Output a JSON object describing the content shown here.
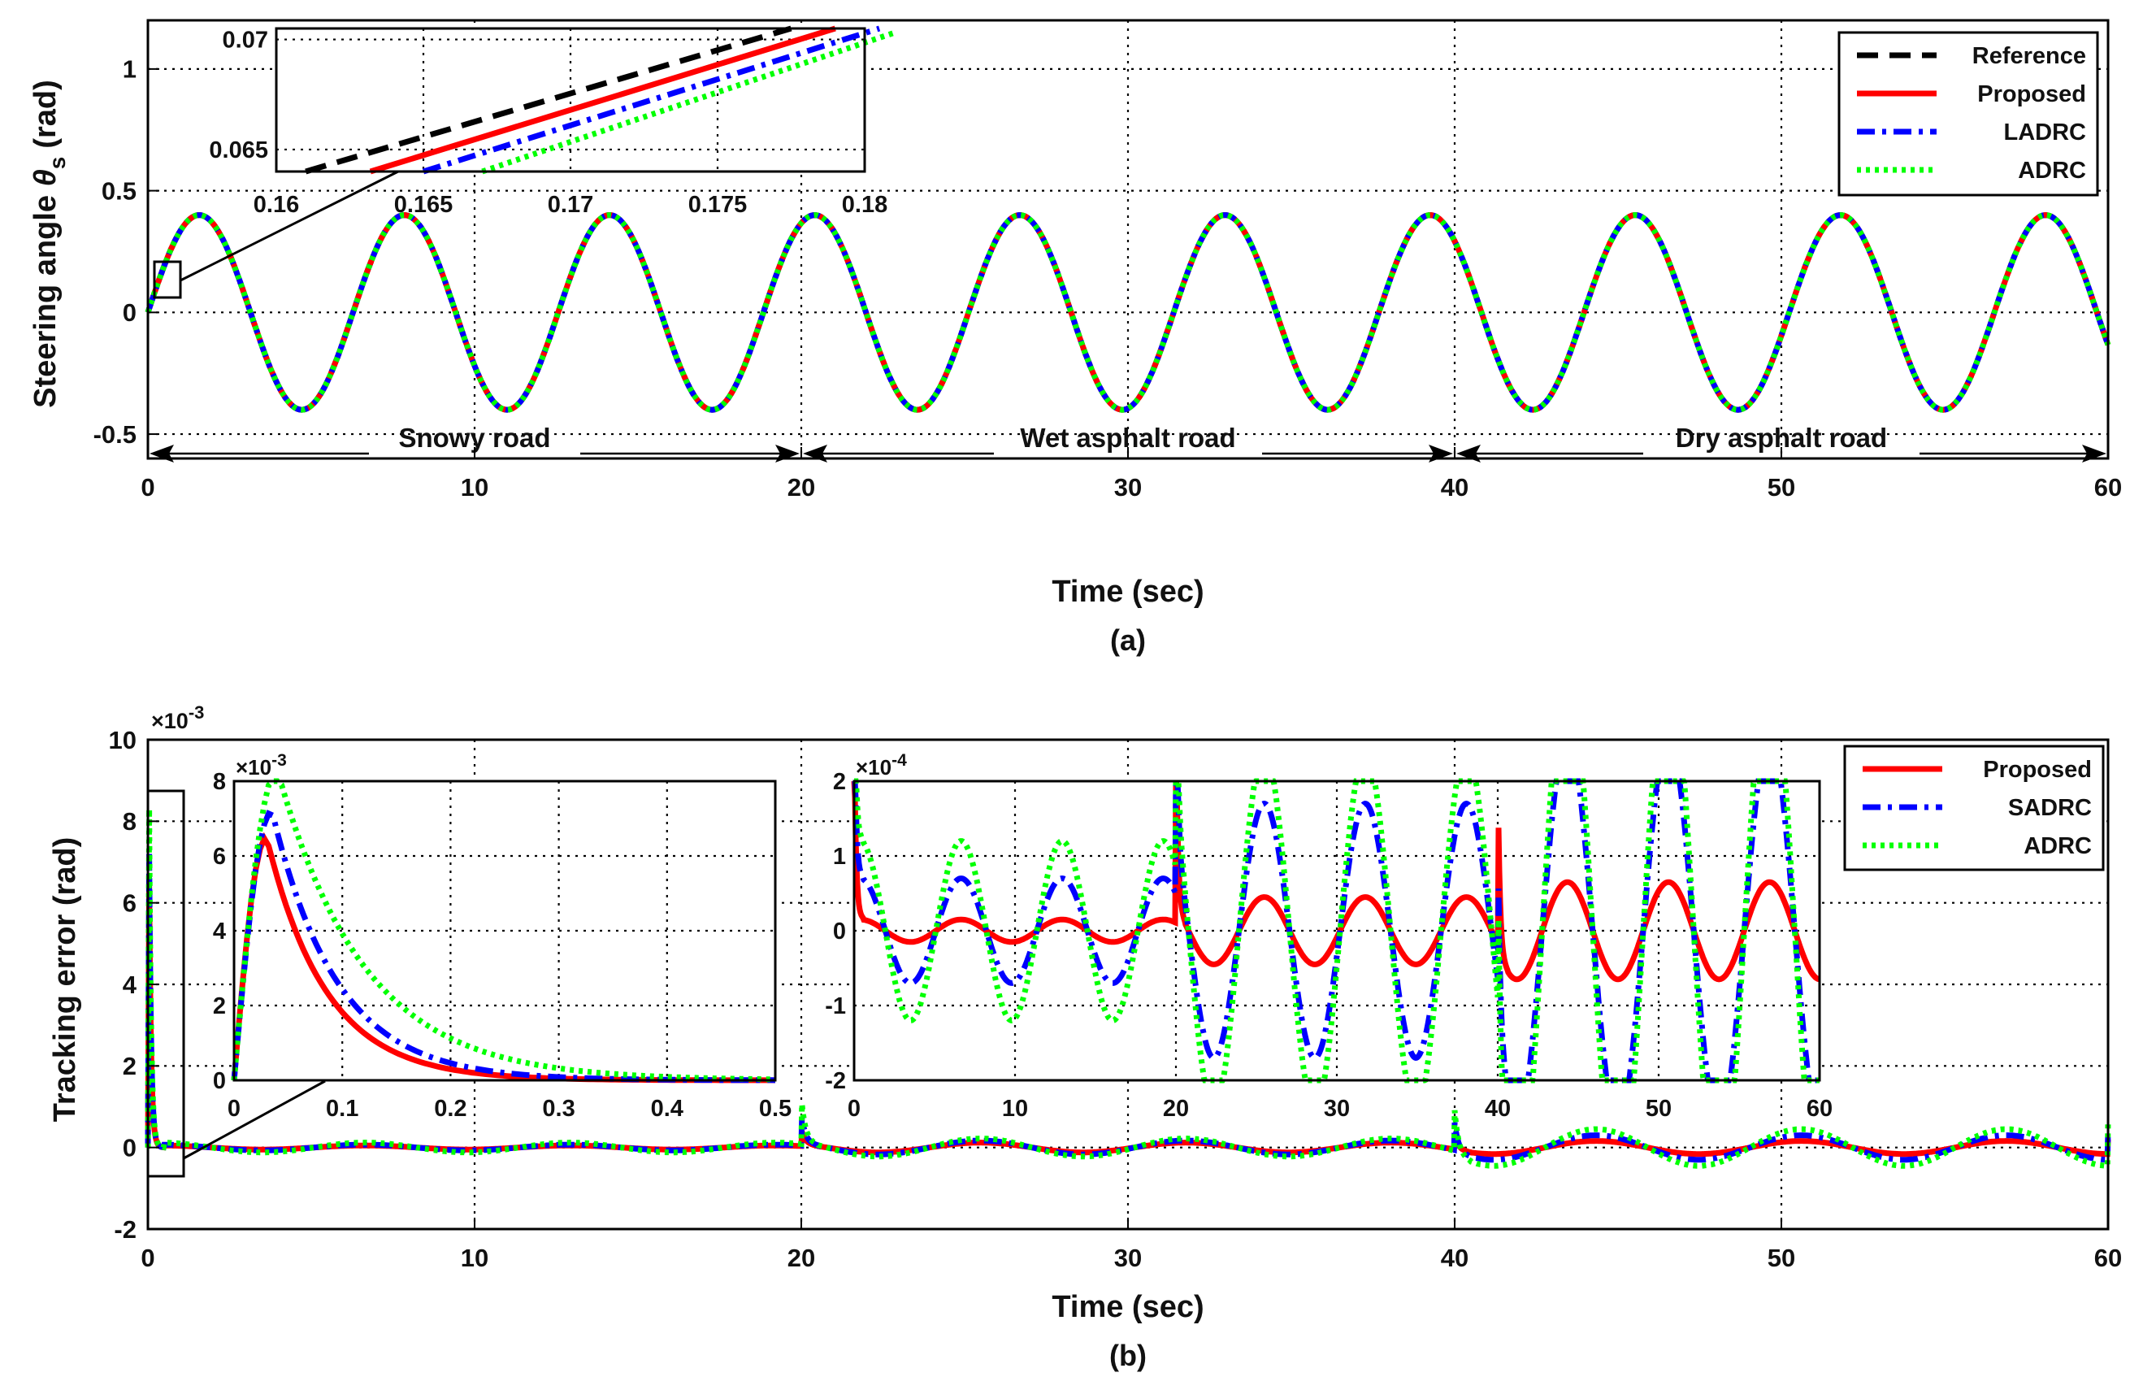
{
  "chart_data": [
    {
      "id": "a",
      "type": "line",
      "caption": "(a)",
      "xlabel": "Time (sec)",
      "ylabel_main": "Steering angle",
      "ylabel_symbol": "θ",
      "ylabel_sub": "s",
      "ylabel_unit": "(rad)",
      "xlim": [
        0,
        60
      ],
      "ylim": [
        -0.6,
        1.2
      ],
      "xticks": [
        "0",
        "10",
        "20",
        "30",
        "40",
        "50",
        "60"
      ],
      "yticks": [
        "-0.5",
        "0",
        "0.5",
        "1"
      ],
      "grid": true,
      "signal": {
        "amplitude": 0.4,
        "period": 6.28
      },
      "series": [
        {
          "name": "Reference",
          "color": "#000000",
          "dash": "dash"
        },
        {
          "name": "Proposed",
          "color": "#ff0000",
          "dash": "solid"
        },
        {
          "name": "LADRC",
          "color": "#0000ff",
          "dash": "dashdot"
        },
        {
          "name": "ADRC",
          "color": "#00ff00",
          "dash": "dot"
        }
      ],
      "legend": "top-right",
      "annotations": [
        {
          "label": "Snowy road",
          "from": 0,
          "to": 20
        },
        {
          "label": "Wet asphalt road",
          "from": 20,
          "to": 40
        },
        {
          "label": "Dry asphalt road",
          "from": 40,
          "to": 60
        }
      ],
      "inset": {
        "xlim": [
          0.16,
          0.18
        ],
        "ylim": [
          0.064,
          0.0705
        ],
        "xticks": [
          "0.16",
          "0.165",
          "0.17",
          "0.175",
          "0.18"
        ],
        "yticks": [
          "0.065",
          "0.07"
        ],
        "lines": [
          {
            "name": "Reference",
            "points": [
              [
                0.161,
                0.064
              ],
              [
                0.1775,
                0.0705
              ]
            ]
          },
          {
            "name": "Proposed",
            "points": [
              [
                0.1632,
                0.064
              ],
              [
                0.179,
                0.0705
              ]
            ]
          },
          {
            "name": "LADRC",
            "points": [
              [
                0.165,
                0.064
              ],
              [
                0.1805,
                0.0705
              ]
            ]
          },
          {
            "name": "ADRC",
            "points": [
              [
                0.167,
                0.064
              ],
              [
                0.181,
                0.0703
              ]
            ]
          }
        ]
      }
    },
    {
      "id": "b",
      "type": "line",
      "caption": "(b)",
      "xlabel": "Time (sec)",
      "ylabel": "Tracking error (rad)",
      "xlim": [
        0,
        60
      ],
      "ylim": [
        -2,
        10
      ],
      "yscale_label": "×10",
      "yscale_exp": "-3",
      "xticks": [
        "0",
        "10",
        "20",
        "30",
        "40",
        "50",
        "60"
      ],
      "yticks": [
        "-2",
        "0",
        "2",
        "4",
        "6",
        "8",
        "10"
      ],
      "grid": true,
      "series": [
        {
          "name": "Proposed",
          "color": "#ff0000",
          "dash": "solid",
          "peak": 6.5,
          "ripple": 0.06,
          "seg_amp": [
            0.05,
            0.12,
            0.16
          ]
        },
        {
          "name": "SADRC",
          "color": "#0000ff",
          "dash": "dashdot",
          "peak": 7.2,
          "ripple": 0.12,
          "seg_amp": [
            0.07,
            0.17,
            0.3
          ]
        },
        {
          "name": "ADRC",
          "color": "#00ff00",
          "dash": "dot",
          "peak": 8.3,
          "ripple": 0.18,
          "seg_amp": [
            0.12,
            0.22,
            0.45
          ]
        }
      ],
      "legend": "top-right",
      "inset_left": {
        "xlim": [
          0,
          0.5
        ],
        "ylim": [
          0,
          8
        ],
        "yscale_label": "×10",
        "yscale_exp": "-3",
        "xticks": [
          "0",
          "0.1",
          "0.2",
          "0.3",
          "0.4",
          "0.5"
        ],
        "yticks": [
          "0",
          "2",
          "4",
          "6",
          "8"
        ],
        "curves": [
          {
            "name": "Proposed",
            "peak": 6.5,
            "tpeak": 0.03,
            "tau": 0.055
          },
          {
            "name": "SADRC",
            "peak": 7.2,
            "tpeak": 0.035,
            "tau": 0.06
          },
          {
            "name": "ADRC",
            "peak": 8.3,
            "tpeak": 0.04,
            "tau": 0.08
          }
        ]
      },
      "inset_right": {
        "xlim": [
          0,
          60
        ],
        "ylim": [
          -2,
          2
        ],
        "yscale_label": "×10",
        "yscale_exp": "-4",
        "xticks": [
          "0",
          "10",
          "20",
          "30",
          "40",
          "50",
          "60"
        ],
        "yticks": [
          "-2",
          "-1",
          "0",
          "1",
          "2"
        ],
        "curves": [
          {
            "name": "Proposed",
            "amps": [
              0.15,
              0.45,
              0.65
            ]
          },
          {
            "name": "SADRC",
            "amps": [
              0.7,
              1.7,
              2.6
            ]
          },
          {
            "name": "ADRC",
            "amps": [
              1.2,
              2.4,
              3.6
            ]
          }
        ]
      }
    }
  ]
}
